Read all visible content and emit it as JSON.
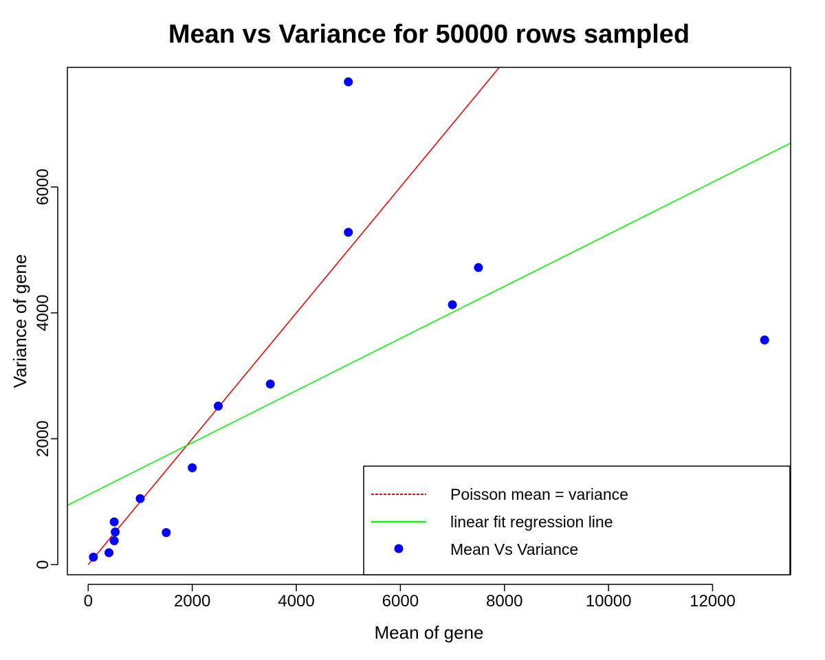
{
  "chart_data": {
    "type": "scatter",
    "title": "Mean vs Variance for 50000 rows sampled",
    "xlabel": "Mean of gene",
    "ylabel": "Variance of gene",
    "xlim": [
      -400,
      13500
    ],
    "ylim": [
      -160,
      7900
    ],
    "x_ticks": [
      0,
      2000,
      4000,
      6000,
      8000,
      10000,
      12000
    ],
    "x_tick_labels": [
      "0",
      "2000",
      "4000",
      "6000",
      "8000",
      "10000",
      "12000"
    ],
    "y_ticks": [
      0,
      2000,
      4000,
      6000
    ],
    "y_tick_labels": [
      "0",
      "2000",
      "4000",
      "6000"
    ],
    "grid": false,
    "legend_position": "bottom-right",
    "points": {
      "name": "Mean Vs Variance",
      "color": "#0000ff",
      "x": [
        100,
        400,
        500,
        500,
        520,
        1000,
        1500,
        2000,
        2500,
        3500,
        5000,
        5000,
        7000,
        7500,
        13000
      ],
      "y": [
        120,
        190,
        380,
        680,
        520,
        1050,
        510,
        1540,
        2520,
        2870,
        5280,
        7670,
        4130,
        4720,
        3570
      ]
    },
    "lines": [
      {
        "name": "Poisson mean = variance",
        "color": "#ff0000",
        "intercept": 0,
        "slope": 1,
        "x_start": 0,
        "legend_style": "dashed"
      },
      {
        "name": "linear fit regression line",
        "color": "#00ff00",
        "intercept": 1110,
        "slope": 0.414,
        "legend_style": "solid"
      }
    ]
  }
}
